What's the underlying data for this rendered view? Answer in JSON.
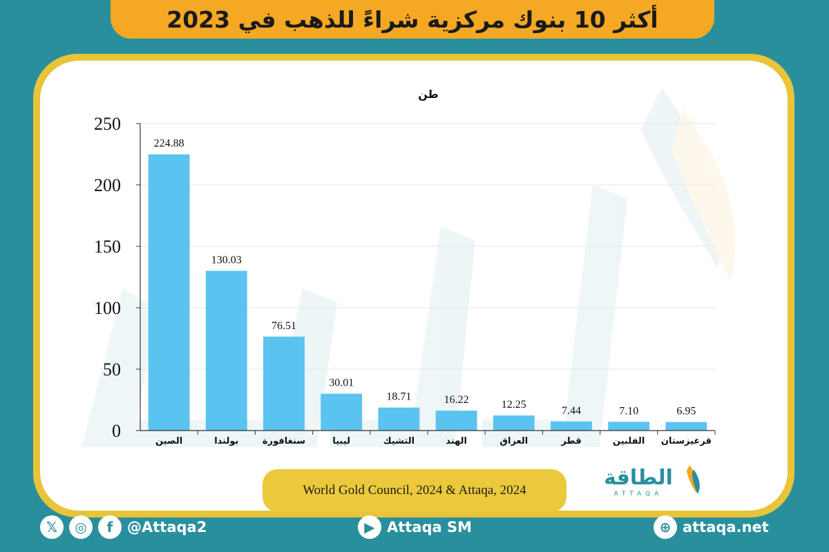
{
  "header": {
    "title": "أكثر 10 بنوك مركزية شراءً للذهب في 2023"
  },
  "chart_data": {
    "type": "bar",
    "ylabel": "طن",
    "ylim": [
      0,
      250
    ],
    "yticks": [
      0,
      50,
      100,
      150,
      200,
      250
    ],
    "categories": [
      "الصين",
      "بولندا",
      "سنغافورة",
      "ليبيا",
      "التشيك",
      "الهند",
      "العراق",
      "قطر",
      "الفلبين",
      "قرغيزستان"
    ],
    "values": [
      224.88,
      130.03,
      76.51,
      30.01,
      18.71,
      16.22,
      12.25,
      7.44,
      7.1,
      6.95
    ],
    "value_labels": [
      "224.88",
      "130.03",
      "76.51",
      "30.01",
      "18.71",
      "16.22",
      "12.25",
      "7.44",
      "7.10",
      "6.95"
    ],
    "bar_color": "#5bc3ef",
    "grid": true
  },
  "source": {
    "text": "World Gold Council, 2024 & Attaqa, 2024"
  },
  "brand": {
    "arabic": "الطاقة",
    "latin": "ATTAQA"
  },
  "footer": {
    "social_handle": "@Attaqa2",
    "youtube": "Attaqa SM",
    "website": "attaqa.net"
  },
  "colors": {
    "background": "#2a8f9c",
    "title_bar": "#f4a823",
    "card_border": "#e8c43a",
    "bar": "#5bc3ef"
  }
}
